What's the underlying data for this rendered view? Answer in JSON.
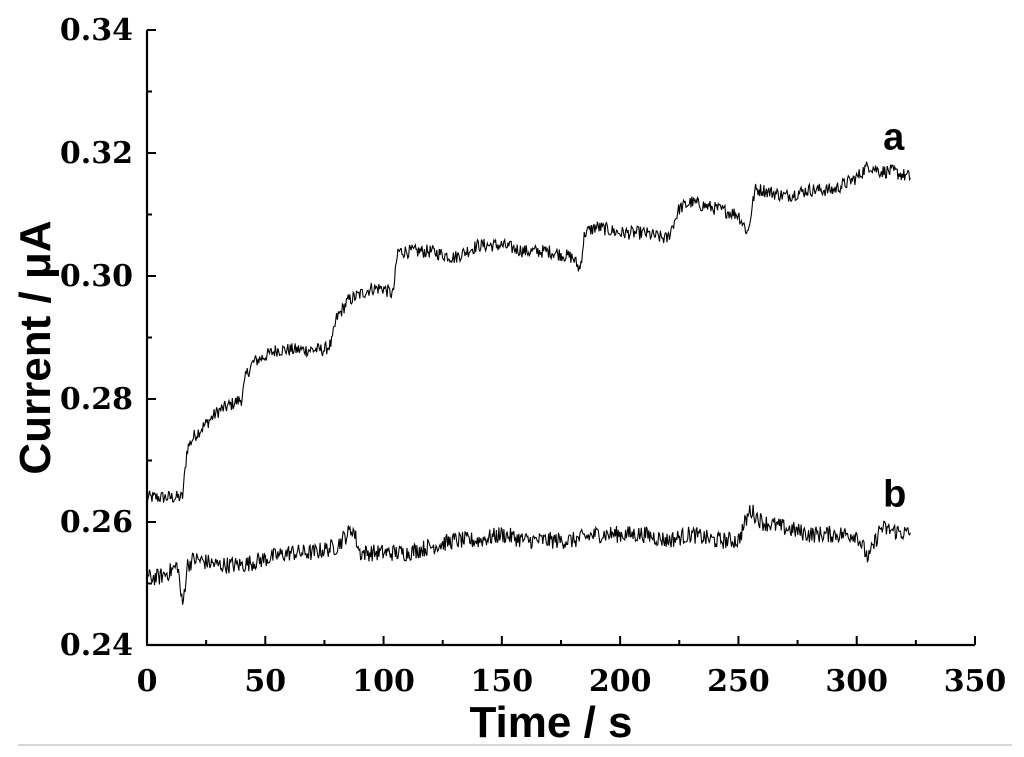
{
  "chart_data": {
    "type": "line",
    "xlabel": "Time / s",
    "ylabel": "Current / μA",
    "xlim": [
      0,
      350
    ],
    "ylim": [
      0.24,
      0.34
    ],
    "x_ticks": [
      0,
      50,
      100,
      150,
      200,
      250,
      300,
      350
    ],
    "y_ticks": [
      0.24,
      0.26,
      0.28,
      0.3,
      0.32,
      0.34
    ],
    "x_tick_labels": [
      "0",
      "50",
      "100",
      "150",
      "200",
      "250",
      "300",
      "350"
    ],
    "y_tick_labels": [
      "0.24",
      "0.26",
      "0.28",
      "0.30",
      "0.32",
      "0.34"
    ],
    "grid": false,
    "series": [
      {
        "name": "a",
        "x": [
          0,
          5,
          10,
          15,
          17,
          20,
          25,
          30,
          35,
          40,
          42,
          45,
          50,
          55,
          60,
          65,
          70,
          75,
          78,
          80,
          85,
          90,
          95,
          100,
          104,
          106,
          110,
          120,
          130,
          140,
          150,
          160,
          170,
          180,
          183,
          185,
          190,
          200,
          210,
          220,
          225,
          230,
          240,
          250,
          254,
          257,
          260,
          270,
          280,
          290,
          300,
          305,
          310,
          315,
          323
        ],
        "y": [
          0.264,
          0.264,
          0.264,
          0.264,
          0.272,
          0.274,
          0.276,
          0.278,
          0.279,
          0.28,
          0.284,
          0.286,
          0.287,
          0.288,
          0.288,
          0.288,
          0.288,
          0.288,
          0.289,
          0.293,
          0.296,
          0.297,
          0.298,
          0.298,
          0.297,
          0.304,
          0.304,
          0.304,
          0.303,
          0.305,
          0.305,
          0.304,
          0.304,
          0.303,
          0.301,
          0.307,
          0.308,
          0.307,
          0.307,
          0.306,
          0.311,
          0.312,
          0.311,
          0.31,
          0.307,
          0.314,
          0.314,
          0.313,
          0.314,
          0.314,
          0.316,
          0.318,
          0.317,
          0.317,
          0.316
        ]
      },
      {
        "name": "b",
        "x": [
          0,
          5,
          10,
          13,
          15,
          17,
          20,
          30,
          40,
          50,
          60,
          70,
          80,
          87,
          90,
          100,
          110,
          120,
          130,
          140,
          150,
          160,
          170,
          180,
          190,
          200,
          210,
          220,
          230,
          240,
          250,
          255,
          260,
          270,
          280,
          290,
          300,
          305,
          310,
          323
        ],
        "y": [
          0.251,
          0.251,
          0.252,
          0.253,
          0.246,
          0.253,
          0.254,
          0.253,
          0.253,
          0.254,
          0.255,
          0.255,
          0.256,
          0.259,
          0.255,
          0.255,
          0.255,
          0.256,
          0.257,
          0.257,
          0.258,
          0.257,
          0.257,
          0.257,
          0.258,
          0.258,
          0.258,
          0.257,
          0.258,
          0.257,
          0.257,
          0.262,
          0.26,
          0.259,
          0.258,
          0.258,
          0.258,
          0.254,
          0.259,
          0.258
        ]
      }
    ]
  }
}
